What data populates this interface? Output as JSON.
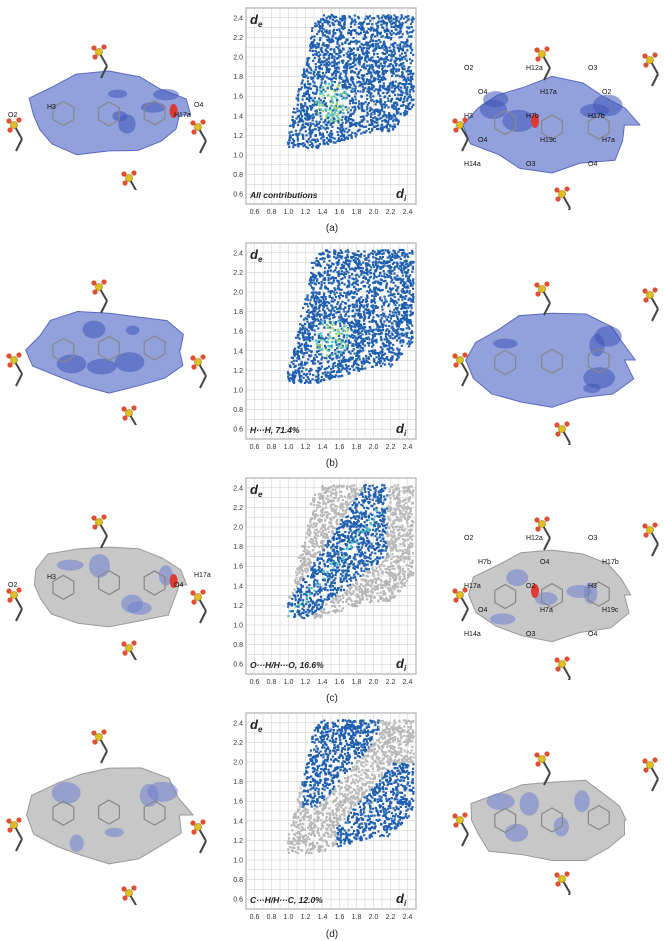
{
  "axis": {
    "de_label": "d",
    "de_sub": "e",
    "di_label": "d",
    "di_sub": "i",
    "ticks": [
      "0.6",
      "0.8",
      "1.0",
      "1.2",
      "1.4",
      "1.6",
      "1.8",
      "2.0",
      "2.2",
      "2.4"
    ],
    "range": [
      0.5,
      2.5
    ]
  },
  "colors": {
    "blue": "#1f5fb0",
    "grey": "#b8b8b8",
    "surface": "#7f8fd6",
    "surface_grey": "#bdbdbd",
    "red": "#e03a30",
    "sulfur": "#e0c020",
    "oxygen": "#e05030"
  },
  "panels": [
    {
      "caption": "(a)",
      "contribution": "All contributions",
      "left_atoms": [
        "O2",
        "H3",
        "H17a",
        "O4"
      ],
      "right_atoms": [
        "O2",
        "H12a",
        "O3",
        "O4",
        "H17a",
        "O2",
        "H3",
        "H7b",
        "H17b",
        "O4",
        "H19c",
        "H7a",
        "H14a",
        "O3",
        "O4"
      ]
    },
    {
      "caption": "(b)",
      "contribution": "H···H, 71.4%",
      "left_atoms": [],
      "right_atoms": []
    },
    {
      "caption": "(c)",
      "contribution": "O···H/H···O, 16.6%",
      "left_atoms": [
        "O2",
        "H3",
        "O4",
        "H17a"
      ],
      "right_atoms": [
        "O2",
        "H12a",
        "O3",
        "H7b",
        "O4",
        "H17b",
        "H17a",
        "O2",
        "H3",
        "O4",
        "H7a",
        "H19c",
        "H14a",
        "O3",
        "O4"
      ]
    },
    {
      "caption": "(d)",
      "contribution": "C···H/H···C, 12.0%",
      "left_atoms": [],
      "right_atoms": []
    }
  ]
}
